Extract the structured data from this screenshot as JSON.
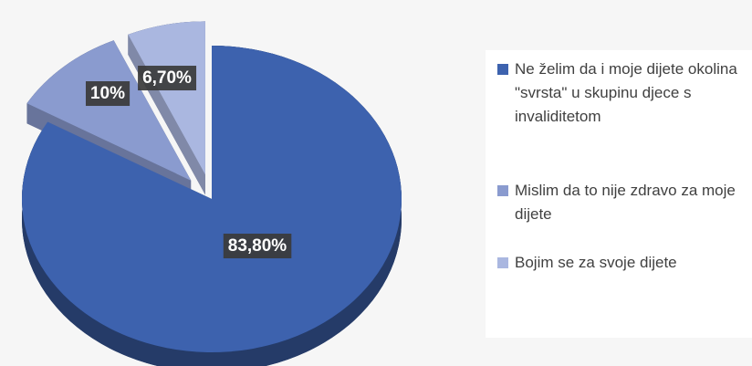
{
  "chart_data": {
    "type": "pie",
    "categories": [
      "Ne želim da i moje dijete okolina \"svrsta\" u skupinu djece s invaliditetom",
      "Mislim da to nije zdravo za moje dijete",
      "Bojim se za svoje dijete"
    ],
    "values": [
      83.8,
      10,
      6.7
    ],
    "value_labels": [
      "83,80%",
      "10%",
      "6,70%"
    ],
    "colors": [
      "#3d62ae",
      "#8a9bcf",
      "#aab7e0"
    ],
    "legend": "right"
  }
}
